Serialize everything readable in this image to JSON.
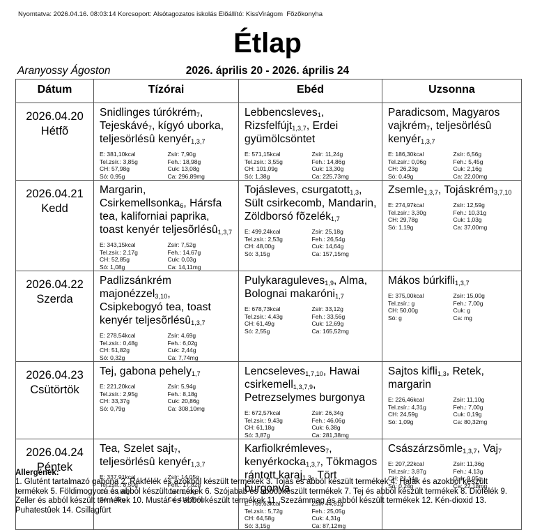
{
  "page": {
    "print_info": "Nyomtatva: 2026.04.16. 08:03:14 Korcsoport: Alsótagozatos iskolás Elõállító: KissVirágom  Fõzõkonyha",
    "title": "Étlap",
    "person": "Aranyossy Ágoston",
    "date_range": "2026. április 20 - 2026. április 24"
  },
  "table": {
    "columns": [
      "Dátum",
      "Tízórai",
      "Ebéd",
      "Uzsonna"
    ],
    "rows": [
      {
        "date": "2026.04.20",
        "day": "Hétfõ",
        "meals": [
          {
            "parts": [
              {
                "t": "Snidlinges túrókrém",
                "s": "7"
              },
              {
                "t": ", Tejeskávé",
                "s": "7"
              },
              {
                "t": ", kígyó uborka, teljesörlésû kenyér",
                "s": "1,3,7"
              }
            ],
            "left": [
              "E: 381,10kcal",
              "Tel.zsír.: 3,85g",
              "CH: 57,98g",
              "Só: 0,95g"
            ],
            "right": [
              "Zsír: 7,90g",
              "Feh.: 18,98g",
              "Cuk: 13,08g",
              "Ca: 296,89mg"
            ]
          },
          {
            "parts": [
              {
                "t": "Lebbencsleves",
                "s": "1"
              },
              {
                "t": ", Rizsfelfújt",
                "s": "1,3,7"
              },
              {
                "t": ", Erdei gyümölcsöntet"
              }
            ],
            "left": [
              "E: 571,15kcal",
              "Tel.zsír.: 3,55g",
              "CH: 101,09g",
              "Só: 1,38g"
            ],
            "right": [
              "Zsír: 11,24g",
              "Feh.: 14,86g",
              "Cuk: 13,30g",
              "Ca: 225,73mg"
            ]
          },
          {
            "parts": [
              {
                "t": "Paradicsom, Magyaros vajkrém",
                "s": "7"
              },
              {
                "t": ", teljesörlésû kenyér",
                "s": "1,3,7"
              }
            ],
            "left": [
              "E: 186,30kcal",
              "Tel.zsír.: 0,06g",
              "CH: 26,23g",
              "Só: 0,49g"
            ],
            "right": [
              "Zsír: 6,56g",
              "Feh.: 5,45g",
              "Cuk: 2,16g",
              "Ca: 22,00mg"
            ]
          }
        ]
      },
      {
        "date": "2026.04.21",
        "day": "Kedd",
        "meals": [
          {
            "parts": [
              {
                "t": "Margarin, Csirkemellsonka",
                "s": "6"
              },
              {
                "t": ", Hársfa tea, kaliforniai paprika, toast kenyér teljesõrlésû",
                "s": "1,3,7"
              }
            ],
            "left": [
              "E: 343,15kcal",
              "Tel.zsír.: 2,17g",
              "CH: 52,85g",
              "Só: 1,08g"
            ],
            "right": [
              "Zsír: 7,52g",
              "Feh.: 14,67g",
              "Cuk: 0,03g",
              "Ca: 14,11mg"
            ]
          },
          {
            "parts": [
              {
                "t": "Tojásleves, csurgatott",
                "s": "1,3"
              },
              {
                "t": ", Sült csirkecomb, Mandarin, Zöldborsó fõzelék",
                "s": "1,7"
              }
            ],
            "left": [
              "E: 499,24kcal",
              "Tel.zsír.: 2,53g",
              "CH: 48,00g",
              "Só: 3,15g"
            ],
            "right": [
              "Zsír: 25,18g",
              "Feh.: 26,54g",
              "Cuk: 14,64g",
              "Ca: 157,15mg"
            ]
          },
          {
            "parts": [
              {
                "t": "Zsemle",
                "s": "1,3,7"
              },
              {
                "t": ", Tojáskrém",
                "s": "3,7,10"
              }
            ],
            "left": [
              "E: 274,97kcal",
              "Tel.zsír.: 3,30g",
              "CH: 29,78g",
              "Só: 1,19g"
            ],
            "right": [
              "Zsír: 12,59g",
              "Feh.: 10,31g",
              "Cuk: 1,03g",
              "Ca: 37,00mg"
            ]
          }
        ]
      },
      {
        "date": "2026.04.22",
        "day": "Szerda",
        "meals": [
          {
            "parts": [
              {
                "t": "Padlizsánkrém majonézzel",
                "s": "3,10"
              },
              {
                "t": ", Csipkebogyó tea, toast kenyér teljesõrlésû",
                "s": "1,3,7"
              }
            ],
            "left": [
              "E: 278,54kcal",
              "Tel.zsír.: 0,48g",
              "CH: 51,82g",
              "Só: 0,32g"
            ],
            "right": [
              "Zsír: 4,69g",
              "Feh.: 6,02g",
              "Cuk: 2,44g",
              "Ca: 7,74mg"
            ]
          },
          {
            "parts": [
              {
                "t": "Pulykaraguleves",
                "s": "1,9"
              },
              {
                "t": ", Alma, Bolognai makaróni",
                "s": "1,7"
              }
            ],
            "left": [
              "E: 678,73kcal",
              "Tel.zsír.: 4,43g",
              "CH: 61,49g",
              "Só: 2,55g"
            ],
            "right": [
              "Zsír: 33,12g",
              "Feh.: 33,56g",
              "Cuk: 12,69g",
              "Ca: 165,52mg"
            ]
          },
          {
            "parts": [
              {
                "t": "Mákos búrkifli",
                "s": "1,3,7"
              }
            ],
            "left": [
              "E: 375,00kcal",
              "Tel.zsír.: g",
              "CH: 50,00g",
              "Só: g"
            ],
            "right": [
              "Zsír: 15,00g",
              "Feh.: 7,00g",
              "Cuk: g",
              "Ca: mg"
            ]
          }
        ]
      },
      {
        "date": "2026.04.23",
        "day": "Csütörtök",
        "meals": [
          {
            "parts": [
              {
                "t": "Tej, gabona pehely",
                "s": "1,7"
              }
            ],
            "left": [
              "E: 221,20kcal",
              "Tel.zsír.: 2,95g",
              "CH: 33,37g",
              "Só: 0,79g"
            ],
            "right": [
              "Zsír: 5,94g",
              "Feh.: 8,18g",
              "Cuk: 20,86g",
              "Ca: 308,10mg"
            ]
          },
          {
            "parts": [
              {
                "t": "Lencseleves",
                "s": "1,7,10"
              },
              {
                "t": ", Hawai csirkemell",
                "s": "1,3,7,9"
              },
              {
                "t": ", Petrezselymes burgonya"
              }
            ],
            "left": [
              "E: 672,57kcal",
              "Tel.zsír.: 9,43g",
              "CH: 61,18g",
              "Só: 3,87g"
            ],
            "right": [
              "Zsír: 26,34g",
              "Feh.: 46,06g",
              "Cuk: 6,38g",
              "Ca: 281,38mg"
            ]
          },
          {
            "parts": [
              {
                "t": "Sajtos kifli",
                "s": "1,3"
              },
              {
                "t": ", Retek, margarin"
              }
            ],
            "left": [
              "E: 226,46kcal",
              "Tel.zsír.: 4,31g",
              "CH: 24,59g",
              "Só: 1,09g"
            ],
            "right": [
              "Zsír: 11,10g",
              "Feh.: 7,00g",
              "Cuk: 0,19g",
              "Ca: 80,32mg"
            ]
          }
        ]
      },
      {
        "date": "2026.04.24",
        "day": "Péntek",
        "meals": [
          {
            "parts": [
              {
                "t": "Tea, Szelet sajt",
                "s": "7"
              },
              {
                "t": ", teljesörlésû kenyér",
                "s": "1,3,7"
              }
            ],
            "left": [
              "E: 337,91kcal",
              "Tel.zsír.: 8,50g",
              "CH: 33,80g",
              "Só: 1,49g"
            ],
            "right": [
              "Zsír: 14,05g",
              "Feh.: 17,82g",
              "Cuk: 1,53g",
              "Ca: 418,20mg"
            ]
          },
          {
            "parts": [
              {
                "t": "Karfiolkrémleves",
                "s": "7"
              },
              {
                "t": ", kenyérkocka",
                "s": "1,3,7"
              },
              {
                "t": ", Tökmagos rántott karaj",
                "s": "1,3"
              },
              {
                "t": ", Tört burgonya"
              }
            ],
            "left": [
              "E: 769,63kcal",
              "Tel.zsír.: 5,72g",
              "CH: 64,58g",
              "Só: 3,15g"
            ],
            "right": [
              "Zsír: 44,81g",
              "Feh.: 25,05g",
              "Cuk: 4,31g",
              "Ca: 87,12mg"
            ]
          },
          {
            "parts": [
              {
                "t": "Császárzsömle",
                "s": "1,3,7"
              },
              {
                "t": ", Vaj",
                "s": "7"
              }
            ],
            "left": [
              "E: 207,22kcal",
              "Tel.zsír.: 3,87g",
              "CH: 21,14g",
              "Só: 0,24g"
            ],
            "right": [
              "Zsír: 11,36g",
              "Feh.: 4,13g",
              "Cuk: 0,05g",
              "Ca: 22,18mg"
            ]
          }
        ]
      }
    ]
  },
  "footer": {
    "heading": "Allergének:",
    "text": "1. Glutént tartalmazó gabona 2. Rákfélék és azokból készült termékek 3. Tojás és abból készült termékek 4. Halak és azokból készült termékek 5. Földimogyoró és abból készült termékek 6. Szójabab és abból készült termékek 7. Tej és abból készült termékek 8. Diófélék 9. Zeller és abból készült termékek 10. Mustár és abból készült termékek 11. Szezámmag és abból készült termékek 12. Kén-dioxid 13. Puhatestûek 14. Csillagfürt"
  }
}
